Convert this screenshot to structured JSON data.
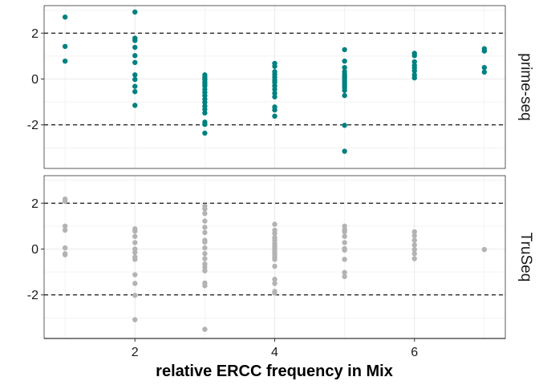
{
  "chart_data": {
    "type": "scatter",
    "xlabel": "relative ERCC frequency in Mix",
    "ylabel": "",
    "xlim": [
      0.7,
      7.3
    ],
    "ylim": [
      -3.9,
      3.2
    ],
    "x_ticks": [
      2,
      4,
      6
    ],
    "x_tick_labels": [
      "2",
      "4",
      "6"
    ],
    "y_ticks": [
      -2,
      0,
      2
    ],
    "y_tick_labels": [
      "-2",
      "0",
      "2"
    ],
    "reference_lines": [
      2,
      -2
    ],
    "grid": true,
    "colors": {
      "prime_seq": "#008080",
      "truseq": "#b3b3b3",
      "reference_line": "#000000",
      "grid": "#ebebeb",
      "panel_border": "#333333"
    },
    "panels": [
      {
        "strip_label": "prime-seq",
        "color": "#008080",
        "points": [
          [
            1,
            2.7
          ],
          [
            1,
            1.42
          ],
          [
            1,
            0.78
          ],
          [
            2,
            2.92
          ],
          [
            2,
            1.78
          ],
          [
            2,
            1.68
          ],
          [
            2,
            1.38
          ],
          [
            2,
            1.02
          ],
          [
            2,
            0.72
          ],
          [
            2,
            0.18
          ],
          [
            2,
            -0.02
          ],
          [
            2,
            -0.32
          ],
          [
            2,
            -0.55
          ],
          [
            2,
            -1.15
          ],
          [
            3,
            0.18
          ],
          [
            3,
            0.08
          ],
          [
            3,
            -0.02
          ],
          [
            3,
            -0.12
          ],
          [
            3,
            -0.2
          ],
          [
            3,
            -0.3
          ],
          [
            3,
            -0.45
          ],
          [
            3,
            -0.58
          ],
          [
            3,
            -0.72
          ],
          [
            3,
            -0.88
          ],
          [
            3,
            -1.02
          ],
          [
            3,
            -1.18
          ],
          [
            3,
            -1.32
          ],
          [
            3,
            -1.48
          ],
          [
            3,
            -1.88
          ],
          [
            3,
            -1.98
          ],
          [
            3,
            -2.36
          ],
          [
            4,
            0.68
          ],
          [
            4,
            0.55
          ],
          [
            4,
            0.32
          ],
          [
            4,
            0.2
          ],
          [
            4,
            0.08
          ],
          [
            4,
            -0.05
          ],
          [
            4,
            -0.15
          ],
          [
            4,
            -0.3
          ],
          [
            4,
            -0.45
          ],
          [
            4,
            -0.62
          ],
          [
            4,
            -0.78
          ],
          [
            4,
            -1.22
          ],
          [
            4,
            -1.35
          ],
          [
            4,
            -1.62
          ],
          [
            5,
            1.28
          ],
          [
            5,
            0.78
          ],
          [
            5,
            0.5
          ],
          [
            5,
            0.32
          ],
          [
            5,
            0.2
          ],
          [
            5,
            0.1
          ],
          [
            5,
            0.02
          ],
          [
            5,
            -0.08
          ],
          [
            5,
            -0.18
          ],
          [
            5,
            -0.28
          ],
          [
            5,
            -0.38
          ],
          [
            5,
            -0.5
          ],
          [
            5,
            -0.72
          ],
          [
            5,
            -2.02
          ],
          [
            5,
            -3.15
          ],
          [
            6,
            1.12
          ],
          [
            6,
            1.02
          ],
          [
            6,
            0.75
          ],
          [
            6,
            0.6
          ],
          [
            6,
            0.48
          ],
          [
            6,
            0.35
          ],
          [
            6,
            0.18
          ],
          [
            6,
            0.05
          ],
          [
            7,
            1.32
          ],
          [
            7,
            1.22
          ],
          [
            7,
            0.5
          ],
          [
            7,
            0.3
          ]
        ]
      },
      {
        "strip_label": "TruSeq",
        "color": "#b3b3b3",
        "points": [
          [
            1,
            2.18
          ],
          [
            1,
            2.08
          ],
          [
            1,
            1.0
          ],
          [
            1,
            0.82
          ],
          [
            1,
            0.05
          ],
          [
            1,
            -0.2
          ],
          [
            1,
            -0.25
          ],
          [
            2,
            0.88
          ],
          [
            2,
            0.78
          ],
          [
            2,
            0.55
          ],
          [
            2,
            0.28
          ],
          [
            2,
            0.0
          ],
          [
            2,
            -0.15
          ],
          [
            2,
            -0.35
          ],
          [
            2,
            -0.45
          ],
          [
            2,
            -1.12
          ],
          [
            2,
            -1.5
          ],
          [
            2,
            -2.02
          ],
          [
            2,
            -3.08
          ],
          [
            3,
            1.88
          ],
          [
            3,
            1.75
          ],
          [
            3,
            1.55
          ],
          [
            3,
            1.22
          ],
          [
            3,
            0.95
          ],
          [
            3,
            0.72
          ],
          [
            3,
            0.38
          ],
          [
            3,
            0.3
          ],
          [
            3,
            0.05
          ],
          [
            3,
            -0.2
          ],
          [
            3,
            -0.42
          ],
          [
            3,
            -0.65
          ],
          [
            3,
            -0.8
          ],
          [
            3,
            -0.95
          ],
          [
            3,
            -1.48
          ],
          [
            3,
            -1.6
          ],
          [
            3,
            -3.5
          ],
          [
            4,
            1.08
          ],
          [
            4,
            0.82
          ],
          [
            4,
            0.68
          ],
          [
            4,
            0.5
          ],
          [
            4,
            0.38
          ],
          [
            4,
            0.25
          ],
          [
            4,
            0.15
          ],
          [
            4,
            0.05
          ],
          [
            4,
            -0.05
          ],
          [
            4,
            -0.15
          ],
          [
            4,
            -0.25
          ],
          [
            4,
            -0.35
          ],
          [
            4,
            -0.45
          ],
          [
            4,
            -0.75
          ],
          [
            4,
            -1.32
          ],
          [
            4,
            -1.5
          ],
          [
            4,
            -1.85
          ],
          [
            4,
            -1.92
          ],
          [
            5,
            1.0
          ],
          [
            5,
            0.85
          ],
          [
            5,
            0.75
          ],
          [
            5,
            0.55
          ],
          [
            5,
            0.28
          ],
          [
            5,
            0.02
          ],
          [
            5,
            -0.05
          ],
          [
            5,
            -0.45
          ],
          [
            5,
            -1.02
          ],
          [
            5,
            -1.2
          ],
          [
            6,
            0.75
          ],
          [
            6,
            0.58
          ],
          [
            6,
            0.38
          ],
          [
            6,
            0.18
          ],
          [
            6,
            -0.02
          ],
          [
            6,
            -0.2
          ],
          [
            6,
            -0.42
          ],
          [
            7,
            -0.02
          ]
        ]
      }
    ]
  }
}
